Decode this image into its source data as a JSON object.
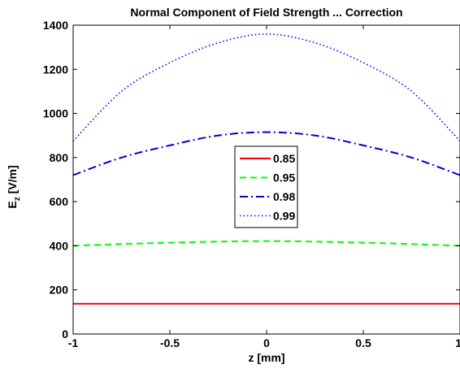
{
  "chart_data": {
    "type": "line",
    "title": "Normal Component of Field Strength ... Correction",
    "xlabel": "z [mm]",
    "ylabel_main": "E",
    "ylabel_sub": "z",
    "ylabel_unit": " [V/m]",
    "xlim": [
      -1,
      1
    ],
    "ylim": [
      0,
      1400
    ],
    "xticks": [
      -1,
      -0.5,
      0,
      0.5,
      1
    ],
    "xtick_labels": [
      "-1",
      "-0.5",
      "0",
      "0.5",
      "1"
    ],
    "yticks": [
      0,
      200,
      400,
      600,
      800,
      1000,
      1200,
      1400
    ],
    "ytick_labels": [
      "0",
      "200",
      "400",
      "600",
      "800",
      "1000",
      "1200",
      "1400"
    ],
    "legend_position": "center",
    "series": [
      {
        "name": "0.85",
        "color": "#ff0000",
        "style": "solid",
        "x": [
          -1,
          -0.5,
          0,
          0.5,
          1
        ],
        "y": [
          137,
          137,
          137,
          137,
          137
        ]
      },
      {
        "name": "0.95",
        "color": "#00ff00",
        "style": "dashed",
        "x": [
          -1,
          -0.75,
          -0.5,
          -0.25,
          0,
          0.25,
          0.5,
          0.75,
          1
        ],
        "y": [
          400,
          408,
          414,
          419,
          421,
          419,
          414,
          408,
          400
        ]
      },
      {
        "name": "0.98",
        "color": "#0000cc",
        "style": "dashdot",
        "x": [
          -1,
          -0.75,
          -0.5,
          -0.25,
          0,
          0.25,
          0.5,
          0.75,
          1
        ],
        "y": [
          720,
          800,
          855,
          900,
          915,
          900,
          855,
          800,
          720
        ]
      },
      {
        "name": "0.99",
        "color": "#0000ff",
        "style": "dotted",
        "x": [
          -1,
          -0.75,
          -0.5,
          -0.25,
          0,
          0.25,
          0.5,
          0.75,
          1
        ],
        "y": [
          875,
          1100,
          1230,
          1320,
          1360,
          1320,
          1230,
          1100,
          875
        ]
      }
    ]
  }
}
